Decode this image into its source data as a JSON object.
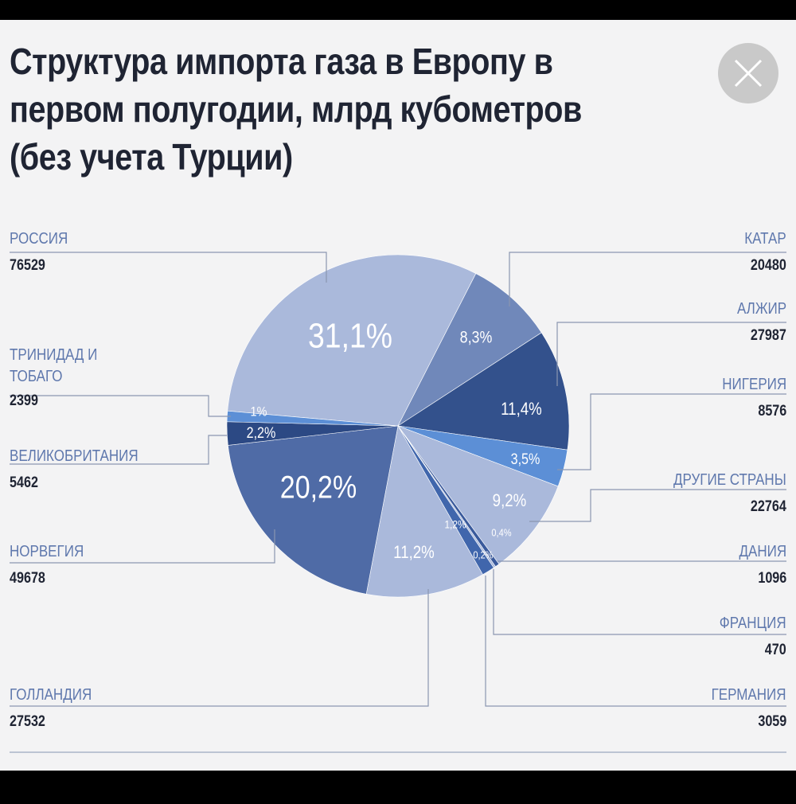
{
  "chart_data": {
    "type": "pie",
    "title": "Структура импорта газа в Европу в первом полугодии, млрд кубометров (без учета Турции)",
    "categories": [
      "РОССИЯ",
      "КАТАР",
      "АЛЖИР",
      "НИГЕРИЯ",
      "ДРУГИЕ СТРАНЫ",
      "ДАНИЯ",
      "ФРАНЦИЯ",
      "ГЕРМАНИЯ",
      "ГОЛЛАНДИЯ",
      "НОРВЕГИЯ",
      "ВЕЛИКОБРИТАНИЯ",
      "ТРИНИДАД И ТОБАГО"
    ],
    "values": [
      31.1,
      8.3,
      11.4,
      3.5,
      9.2,
      0.4,
      0.2,
      1.2,
      11.2,
      20.2,
      2.2,
      1
    ],
    "value_labels": [
      "31,1%",
      "8,3%",
      "11,4%",
      "3,5%",
      "9,2%",
      "0,4%",
      "0,2%",
      "1,2%",
      "11,2%",
      "20,2%",
      "2,2%",
      "1%"
    ],
    "volumes": [
      76529,
      20480,
      27987,
      8576,
      22764,
      1096,
      470,
      3059,
      27532,
      49678,
      5462,
      2399
    ],
    "colors": [
      "#aab9db",
      "#7088ba",
      "#33518c",
      "#5c8fd6",
      "#aab9db",
      "#3a5a9c",
      "#aab9db",
      "#4066ac",
      "#aab9db",
      "#4f6ba6",
      "#2c4984",
      "#5c8fd6"
    ]
  }
}
